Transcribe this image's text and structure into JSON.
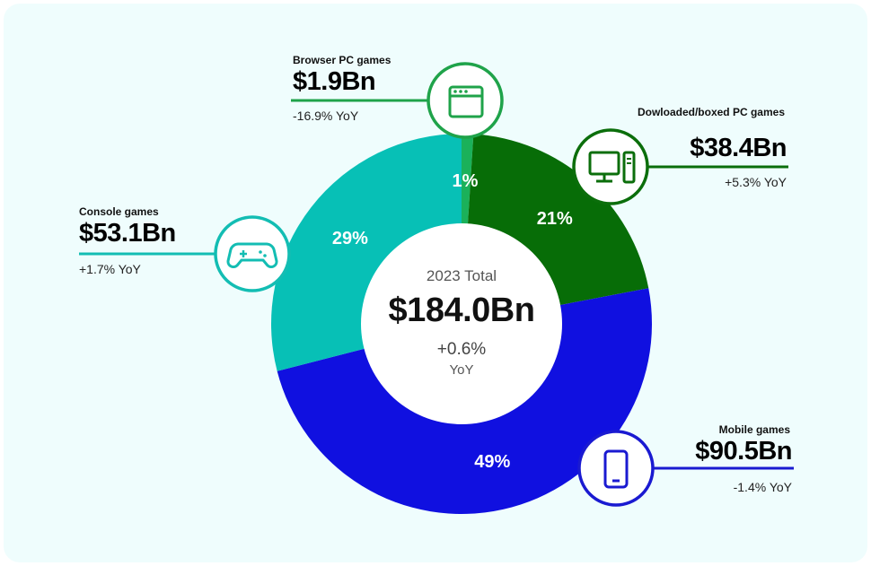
{
  "chart_data": {
    "type": "pie",
    "total": {
      "label": "2023 Total",
      "value": "$184.0Bn",
      "change": "+0.6%",
      "unit": "YoY"
    },
    "series": [
      {
        "name": "Browser PC games",
        "share": 1,
        "pct_label": "1%",
        "value": "$1.9Bn",
        "yoy": "-16.9% YoY",
        "color": "#1bb15a",
        "icon": "browser-window-icon",
        "ring": "#1fa34a"
      },
      {
        "name": "Dowloaded/boxed PC games",
        "share": 21,
        "pct_label": "21%",
        "value": "$38.4Bn",
        "yoy": "+5.3% YoY",
        "color": "#076d07",
        "icon": "desktop-computer-icon",
        "ring": "#0b6e0b"
      },
      {
        "name": "Mobile games",
        "share": 49,
        "pct_label": "49%",
        "value": "$90.5Bn",
        "yoy": "-1.4% YoY",
        "color": "#1010e0",
        "icon": "mobile-phone-icon",
        "ring": "#1a1ad1"
      },
      {
        "name": "Console games",
        "share": 29,
        "pct_label": "29%",
        "value": "$53.1Bn",
        "yoy": "+1.7% YoY",
        "color": "#07c0b6",
        "icon": "gamepad-icon",
        "ring": "#13bdb3"
      }
    ]
  }
}
